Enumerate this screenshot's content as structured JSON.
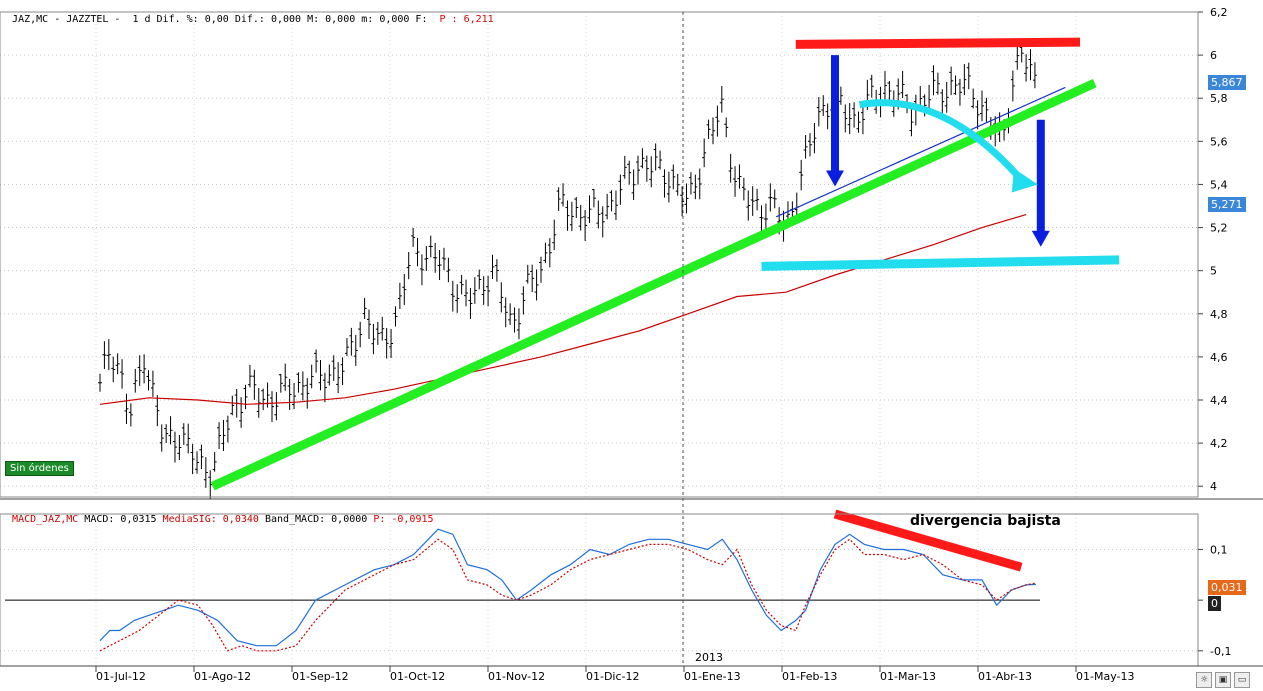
{
  "price_header": {
    "symbol": "JAZ,MC - JAZZTEL - ",
    "period": " 1 d Dif. ",
    "stats": "%: 0,00 Dif.: 0,000 M: 0,000 m: 0,000 F: ",
    "last": " P : 6,211"
  },
  "macd_header": {
    "prefix": "MACD_JAZ,MC ",
    "macd": "MACD: 0,0315 ",
    "signal": "MediaSIG: 0,0340 ",
    "band": "Band_MACD: 0,0000 ",
    "p": "P: -0,0915"
  },
  "status_label": "Sin órdenes",
  "annotation": "divergencia bajista",
  "year_label": "2013",
  "price_badges": [
    "5,867",
    "5,271"
  ],
  "macd_badges": [
    "0,031",
    "0"
  ],
  "colors": {
    "price_badge": "#3a86d8",
    "macd_badge": "#e8681a",
    "macd_zero_badge": "#222222"
  },
  "chart_data": [
    {
      "type": "ohlc-bar",
      "x_categories": [
        "01-Jul-12",
        "01-Ago-12",
        "01-Sep-12",
        "01-Oct-12",
        "01-Nov-12",
        "01-Dic-12",
        "01-Ene-13",
        "01-Feb-13",
        "01-Mar-13",
        "01-Abr-13",
        "01-May-13"
      ],
      "ylim": [
        3.95,
        6.2
      ],
      "yticks": [
        "6,2",
        "6",
        "5,8",
        "5,6",
        "5,4",
        "5,2",
        "5",
        "4,8",
        "4,6",
        "4,4",
        "4,2",
        "4"
      ],
      "ytick_values": [
        6.2,
        6,
        5.8,
        5.6,
        5.4,
        5.2,
        5,
        4.8,
        4.6,
        4.4,
        4.2,
        4
      ],
      "grid": true,
      "close_anchors": [
        [
          0,
          4.45
        ],
        [
          0.1,
          4.65
        ],
        [
          0.2,
          4.55
        ],
        [
          0.3,
          4.3
        ],
        [
          0.45,
          4.62
        ],
        [
          0.65,
          4.2
        ],
        [
          0.8,
          4.25
        ],
        [
          1.0,
          4.1
        ],
        [
          1.15,
          4.08
        ],
        [
          1.35,
          4.35
        ],
        [
          1.5,
          4.45
        ],
        [
          1.7,
          4.4
        ],
        [
          1.95,
          4.45
        ],
        [
          2.2,
          4.5
        ],
        [
          2.5,
          4.55
        ],
        [
          2.7,
          4.8
        ],
        [
          2.85,
          4.65
        ],
        [
          3.0,
          4.75
        ],
        [
          3.2,
          5.1
        ],
        [
          3.45,
          5.05
        ],
        [
          3.75,
          4.85
        ],
        [
          4.0,
          5.0
        ],
        [
          4.2,
          4.75
        ],
        [
          4.35,
          4.9
        ],
        [
          4.5,
          5.0
        ],
        [
          4.7,
          5.3
        ],
        [
          5.0,
          5.25
        ],
        [
          5.2,
          5.3
        ],
        [
          5.5,
          5.5
        ],
        [
          5.8,
          5.45
        ],
        [
          6.0,
          5.3
        ],
        [
          6.2,
          5.6
        ],
        [
          6.35,
          5.75
        ],
        [
          6.5,
          5.4
        ],
        [
          6.65,
          5.3
        ],
        [
          6.85,
          5.3
        ],
        [
          7.0,
          5.2
        ],
        [
          7.2,
          5.5
        ],
        [
          7.35,
          5.75
        ],
        [
          7.5,
          5.8
        ],
        [
          7.7,
          5.7
        ],
        [
          8.0,
          5.85
        ],
        [
          8.3,
          5.75
        ],
        [
          8.6,
          5.85
        ],
        [
          8.9,
          5.85
        ],
        [
          9.05,
          5.7
        ],
        [
          9.2,
          5.6
        ],
        [
          9.3,
          5.85
        ],
        [
          9.4,
          6.0
        ],
        [
          9.55,
          5.88
        ]
      ],
      "series": [
        {
          "name": "",
          "type": "moving-average",
          "color": "#cc0000",
          "points": [
            [
              0,
              4.38
            ],
            [
              0.5,
              4.41
            ],
            [
              1.0,
              4.4
            ],
            [
              1.5,
              4.38
            ],
            [
              2.0,
              4.39
            ],
            [
              2.5,
              4.41
            ],
            [
              3.0,
              4.45
            ],
            [
              3.5,
              4.5
            ],
            [
              4.0,
              4.55
            ],
            [
              4.5,
              4.6
            ],
            [
              5.0,
              4.66
            ],
            [
              5.5,
              4.72
            ],
            [
              6.0,
              4.8
            ],
            [
              6.5,
              4.88
            ],
            [
              7.0,
              4.9
            ],
            [
              7.5,
              4.98
            ],
            [
              8.0,
              5.05
            ],
            [
              8.5,
              5.12
            ],
            [
              9.0,
              5.2
            ],
            [
              9.45,
              5.26
            ]
          ]
        }
      ],
      "annotations": [
        {
          "kind": "trendline",
          "color": "#22ee22",
          "from": [
            1.15,
            4.0
          ],
          "to": [
            10.15,
            5.87
          ]
        },
        {
          "kind": "trendline",
          "color": "#1133cc",
          "from": [
            6.9,
            5.25
          ],
          "to": [
            9.85,
            5.85
          ]
        },
        {
          "kind": "hline",
          "color": "#ff1a1a",
          "from": [
            7.1,
            6.05
          ],
          "to": [
            10.0,
            6.06
          ]
        },
        {
          "kind": "hline",
          "color": "#22ddee",
          "from": [
            6.75,
            5.02
          ],
          "to": [
            10.4,
            5.05
          ]
        },
        {
          "kind": "arrow",
          "color": "#0a1ee0",
          "from": [
            7.5,
            6.0
          ],
          "to": [
            7.5,
            5.4
          ]
        },
        {
          "kind": "arrow",
          "color": "#0a1ee0",
          "from": [
            9.6,
            5.7
          ],
          "to": [
            9.6,
            5.12
          ]
        },
        {
          "kind": "curved-arrow",
          "color": "#22ddee",
          "from": [
            7.75,
            5.77
          ],
          "via": [
            8.6,
            5.8
          ],
          "to": [
            9.55,
            5.4
          ]
        }
      ]
    },
    {
      "type": "line",
      "title": "MACD",
      "ylim": [
        -0.13,
        0.17
      ],
      "yticks": [
        "0,1",
        "0",
        "-0,1"
      ],
      "ytick_values": [
        0.1,
        0,
        -0.1
      ],
      "series": [
        {
          "name": "MACD",
          "color": "#1e6fdd",
          "points": [
            [
              0,
              -0.08
            ],
            [
              0.1,
              -0.06
            ],
            [
              0.2,
              -0.06
            ],
            [
              0.35,
              -0.04
            ],
            [
              0.5,
              -0.03
            ],
            [
              0.65,
              -0.02
            ],
            [
              0.8,
              -0.01
            ],
            [
              1.0,
              -0.02
            ],
            [
              1.2,
              -0.04
            ],
            [
              1.4,
              -0.08
            ],
            [
              1.6,
              -0.09
            ],
            [
              1.8,
              -0.09
            ],
            [
              2.0,
              -0.06
            ],
            [
              2.2,
              0.0
            ],
            [
              2.5,
              0.03
            ],
            [
              2.8,
              0.06
            ],
            [
              3.0,
              0.07
            ],
            [
              3.2,
              0.09
            ],
            [
              3.45,
              0.14
            ],
            [
              3.6,
              0.13
            ],
            [
              3.75,
              0.07
            ],
            [
              3.95,
              0.06
            ],
            [
              4.1,
              0.04
            ],
            [
              4.25,
              0.0
            ],
            [
              4.4,
              0.02
            ],
            [
              4.6,
              0.05
            ],
            [
              4.8,
              0.07
            ],
            [
              5.0,
              0.1
            ],
            [
              5.2,
              0.09
            ],
            [
              5.4,
              0.11
            ],
            [
              5.6,
              0.12
            ],
            [
              5.8,
              0.12
            ],
            [
              6.0,
              0.11
            ],
            [
              6.2,
              0.1
            ],
            [
              6.35,
              0.12
            ],
            [
              6.5,
              0.08
            ],
            [
              6.65,
              0.02
            ],
            [
              6.8,
              -0.03
            ],
            [
              6.95,
              -0.06
            ],
            [
              7.1,
              -0.04
            ],
            [
              7.2,
              -0.02
            ],
            [
              7.35,
              0.06
            ],
            [
              7.5,
              0.11
            ],
            [
              7.65,
              0.13
            ],
            [
              7.8,
              0.11
            ],
            [
              8.0,
              0.1
            ],
            [
              8.2,
              0.1
            ],
            [
              8.4,
              0.09
            ],
            [
              8.6,
              0.05
            ],
            [
              8.8,
              0.04
            ],
            [
              9.0,
              0.04
            ],
            [
              9.15,
              -0.01
            ],
            [
              9.3,
              0.02
            ],
            [
              9.45,
              0.03
            ],
            [
              9.55,
              0.031
            ]
          ]
        },
        {
          "name": "MediaSIG",
          "color": "#cc0000",
          "points": [
            [
              0,
              -0.1
            ],
            [
              0.2,
              -0.08
            ],
            [
              0.4,
              -0.06
            ],
            [
              0.6,
              -0.03
            ],
            [
              0.8,
              0.0
            ],
            [
              1.0,
              -0.01
            ],
            [
              1.15,
              -0.05
            ],
            [
              1.3,
              -0.1
            ],
            [
              1.45,
              -0.09
            ],
            [
              1.6,
              -0.1
            ],
            [
              1.8,
              -0.1
            ],
            [
              2.0,
              -0.09
            ],
            [
              2.2,
              -0.04
            ],
            [
              2.5,
              0.02
            ],
            [
              2.8,
              0.05
            ],
            [
              3.0,
              0.07
            ],
            [
              3.2,
              0.08
            ],
            [
              3.45,
              0.12
            ],
            [
              3.6,
              0.1
            ],
            [
              3.75,
              0.04
            ],
            [
              3.95,
              0.03
            ],
            [
              4.1,
              0.01
            ],
            [
              4.25,
              0.0
            ],
            [
              4.4,
              0.01
            ],
            [
              4.6,
              0.03
            ],
            [
              4.8,
              0.06
            ],
            [
              5.0,
              0.08
            ],
            [
              5.2,
              0.09
            ],
            [
              5.4,
              0.1
            ],
            [
              5.6,
              0.11
            ],
            [
              5.8,
              0.11
            ],
            [
              6.0,
              0.1
            ],
            [
              6.2,
              0.08
            ],
            [
              6.35,
              0.07
            ],
            [
              6.5,
              0.1
            ],
            [
              6.65,
              0.03
            ],
            [
              6.8,
              -0.02
            ],
            [
              6.95,
              -0.05
            ],
            [
              7.1,
              -0.06
            ],
            [
              7.2,
              -0.01
            ],
            [
              7.35,
              0.05
            ],
            [
              7.5,
              0.1
            ],
            [
              7.65,
              0.12
            ],
            [
              7.8,
              0.09
            ],
            [
              8.0,
              0.09
            ],
            [
              8.2,
              0.08
            ],
            [
              8.4,
              0.09
            ],
            [
              8.6,
              0.07
            ],
            [
              8.8,
              0.04
            ],
            [
              9.0,
              0.03
            ],
            [
              9.15,
              0.0
            ],
            [
              9.3,
              0.02
            ],
            [
              9.45,
              0.03
            ],
            [
              9.55,
              0.034
            ]
          ]
        }
      ],
      "annotations": [
        {
          "kind": "trendline",
          "color": "#ff1a1a",
          "from": [
            7.5,
            0.17
          ],
          "to": [
            9.4,
            0.065
          ]
        }
      ]
    }
  ]
}
